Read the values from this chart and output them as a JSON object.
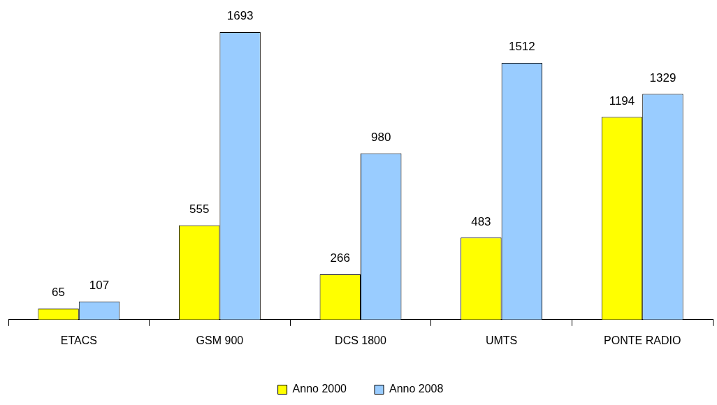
{
  "chart_data": {
    "type": "bar",
    "categories": [
      "ETACS",
      "GSM 900",
      "DCS 1800",
      "UMTS",
      "PONTE RADIO"
    ],
    "series": [
      {
        "name": "Anno 2000",
        "color": "#ffff00",
        "values": [
          65,
          555,
          266,
          483,
          1194
        ]
      },
      {
        "name": "Anno 2008",
        "color": "#99ccff",
        "values": [
          107,
          1693,
          980,
          1512,
          1329
        ]
      }
    ],
    "data_labels": true,
    "grid": false,
    "legend": "bottom"
  }
}
